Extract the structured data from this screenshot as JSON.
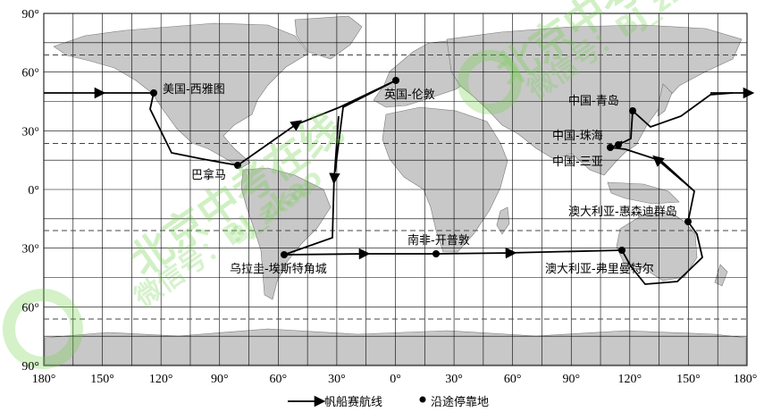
{
  "lat_labels": [
    "90°",
    "60°",
    "30°",
    "0°",
    "30°",
    "60°",
    "90°"
  ],
  "lon_labels": [
    "180°",
    "150°",
    "120°",
    "90°",
    "60°",
    "30°",
    "0°",
    "30°",
    "60°",
    "90°",
    "120°",
    "150°",
    "180°"
  ],
  "stops": [
    {
      "name": "美国-西雅图"
    },
    {
      "name": "巴拿马"
    },
    {
      "name": "英国-伦敦"
    },
    {
      "name": "乌拉圭-埃斯特角城"
    },
    {
      "name": "南非-开普敦"
    },
    {
      "name": "澳大利亚-弗里曼特尔"
    },
    {
      "name": "澳大利亚-惠森迪群岛"
    },
    {
      "name": "中国-三亚"
    },
    {
      "name": "中国-珠海"
    },
    {
      "name": "中国-青岛"
    }
  ],
  "legend": {
    "route_label": "帆船赛航线",
    "stop_label": "沿途停靠地"
  },
  "watermark": {
    "main": "北京中考在线",
    "sub": "微信号：BJ_zkao",
    "short": "BJ zkao"
  },
  "colors": {
    "land": "#c8c8c8",
    "ocean": "#ffffff",
    "route": "#000000",
    "watermark": "#6fd14a"
  }
}
